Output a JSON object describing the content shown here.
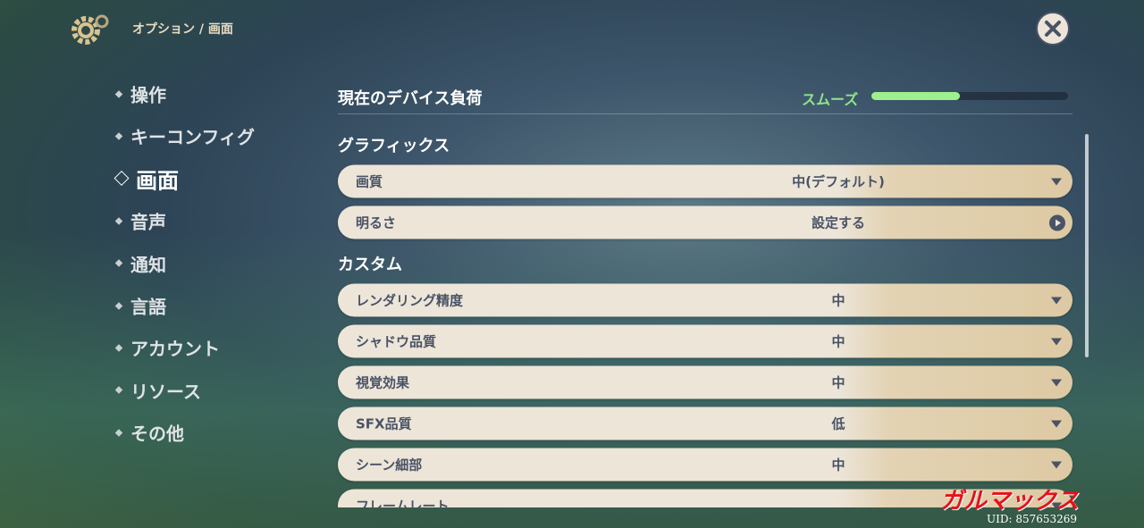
{
  "header": {
    "breadcrumb": "オプション / 画面"
  },
  "sidebar": {
    "items": [
      "操作",
      "キーコンフィグ",
      "画面",
      "音声",
      "通知",
      "言語",
      "アカウント",
      "リソース",
      "その他"
    ],
    "selected": 2
  },
  "device_load": {
    "label": "現在のデバイス負荷",
    "status": "スムーズ",
    "level": 45
  },
  "sections": [
    {
      "title": "グラフィックス",
      "rows": [
        {
          "label": "画質",
          "value": "中(デフォルト)",
          "control": "dropdown"
        },
        {
          "label": "明るさ",
          "value": "設定する",
          "control": "button"
        }
      ]
    },
    {
      "title": "カスタム",
      "rows": [
        {
          "label": "レンダリング精度",
          "value": "中",
          "control": "dropdown"
        },
        {
          "label": "シャドウ品質",
          "value": "中",
          "control": "dropdown"
        },
        {
          "label": "視覚効果",
          "value": "中",
          "control": "dropdown"
        },
        {
          "label": "SFX品質",
          "value": "低",
          "control": "dropdown"
        },
        {
          "label": "シーン細部",
          "value": "中",
          "control": "dropdown"
        },
        {
          "label": "フレームレート",
          "value": null,
          "control": "dropdown"
        }
      ]
    }
  ],
  "watermark": {
    "brand": "ガルマックス",
    "uid": "UID: 857653269"
  }
}
